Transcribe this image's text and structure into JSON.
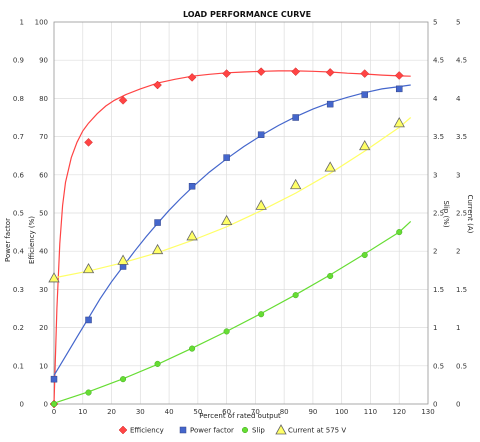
{
  "chart_data": {
    "type": "line",
    "title": "LOAD PERFORMANCE CURVE",
    "xlabel": "Percent of rated output",
    "ylabel_left_outer": "Power factor",
    "ylabel_left_inner": "Efficiency (%)",
    "ylabel_right_inner": "Slip (%)",
    "ylabel_right_outer": "Current (A)",
    "xlim": [
      0,
      130
    ],
    "x_ticks": [
      "0",
      "10",
      "20",
      "30",
      "40",
      "50",
      "60",
      "70",
      "80",
      "90",
      "100",
      "110",
      "120",
      "130"
    ],
    "y_left_outer_ticks": [
      "0",
      "0.1",
      "0.2",
      "0.3",
      "0.4",
      "0.5",
      "0.6",
      "0.7",
      "0.8",
      "0.9",
      "1"
    ],
    "y_left_inner_ticks": [
      "0",
      "10",
      "20",
      "30",
      "40",
      "50",
      "60",
      "70",
      "80",
      "90",
      "100"
    ],
    "y_right_inner_ticks": [
      "0",
      "0.5",
      "1",
      "1.5",
      "2",
      "2.5",
      "3",
      "3.5",
      "4",
      "4.5",
      "5"
    ],
    "y_right_outer_ticks": [
      "0",
      "0.5",
      "1",
      "1.5",
      "2",
      "2.5",
      "3",
      "3.5",
      "4",
      "4.5",
      "5"
    ],
    "grid": true,
    "legend_position": "bottom",
    "series": [
      {
        "name": "Efficiency",
        "color": "#ff4444",
        "marker": "diamond",
        "x": [
          0,
          12,
          24,
          36,
          48,
          60,
          72,
          84,
          96,
          108,
          120
        ],
        "y": [
          0,
          68.5,
          79.5,
          83.5,
          85.5,
          86.5,
          87,
          87,
          86.8,
          86.5,
          86
        ],
        "curve": [
          [
            0,
            0
          ],
          [
            1,
            25
          ],
          [
            2,
            42
          ],
          [
            3,
            52
          ],
          [
            4,
            58
          ],
          [
            6,
            64.5
          ],
          [
            8,
            68.5
          ],
          [
            10,
            71.5
          ],
          [
            12,
            73.5
          ],
          [
            15,
            76
          ],
          [
            18,
            78
          ],
          [
            21,
            79.5
          ],
          [
            25,
            81
          ],
          [
            30,
            82.5
          ],
          [
            36,
            84
          ],
          [
            42,
            85
          ],
          [
            48,
            85.8
          ],
          [
            54,
            86.3
          ],
          [
            60,
            86.7
          ],
          [
            66,
            86.9
          ],
          [
            72,
            87.1
          ],
          [
            78,
            87.2
          ],
          [
            84,
            87.2
          ],
          [
            90,
            87.1
          ],
          [
            96,
            86.9
          ],
          [
            102,
            86.6
          ],
          [
            108,
            86.4
          ],
          [
            114,
            86.1
          ],
          [
            120,
            85.9
          ],
          [
            124,
            85.8
          ]
        ]
      },
      {
        "name": "Power factor",
        "color": "#4466cc",
        "marker": "square",
        "x": [
          0,
          12,
          24,
          36,
          48,
          60,
          72,
          84,
          96,
          108,
          120
        ],
        "y": [
          6.5,
          22,
          36,
          47.5,
          57,
          64.5,
          70.5,
          75,
          78.5,
          81,
          82.5
        ],
        "curve": [
          [
            0,
            7.5
          ],
          [
            4,
            12.5
          ],
          [
            8,
            17.5
          ],
          [
            12,
            22.5
          ],
          [
            16,
            27.5
          ],
          [
            20,
            32
          ],
          [
            24,
            36
          ],
          [
            28,
            40
          ],
          [
            32,
            43.8
          ],
          [
            36,
            47.3
          ],
          [
            40,
            50.7
          ],
          [
            44,
            53.8
          ],
          [
            48,
            56.7
          ],
          [
            54,
            60.7
          ],
          [
            60,
            64.2
          ],
          [
            66,
            67.4
          ],
          [
            72,
            70.3
          ],
          [
            78,
            72.9
          ],
          [
            84,
            75.2
          ],
          [
            90,
            77.2
          ],
          [
            96,
            78.9
          ],
          [
            102,
            80.3
          ],
          [
            108,
            81.5
          ],
          [
            114,
            82.5
          ],
          [
            120,
            83.1
          ],
          [
            124,
            83.5
          ]
        ]
      },
      {
        "name": "Slip",
        "color": "#66dd33",
        "marker": "circle",
        "x": [
          0,
          12,
          24,
          36,
          48,
          60,
          72,
          84,
          96,
          108,
          120
        ],
        "y": [
          0,
          3,
          6.5,
          10.5,
          14.5,
          19,
          23.5,
          28.5,
          33.5,
          39,
          45
        ],
        "curve": [
          [
            0,
            0.2
          ],
          [
            12,
            3.2
          ],
          [
            24,
            6.6
          ],
          [
            36,
            10.4
          ],
          [
            48,
            14.6
          ],
          [
            60,
            19
          ],
          [
            72,
            23.7
          ],
          [
            84,
            28.6
          ],
          [
            96,
            33.8
          ],
          [
            108,
            39.3
          ],
          [
            120,
            45
          ],
          [
            124,
            47.8
          ]
        ]
      },
      {
        "name": "Current at 575 V",
        "color": "#ffff66",
        "marker": "triangle",
        "x": [
          0,
          12,
          24,
          36,
          48,
          60,
          72,
          84,
          96,
          108,
          120
        ],
        "y": [
          1.65,
          1.77,
          1.88,
          2.02,
          2.2,
          2.4,
          2.6,
          2.87,
          3.1,
          3.38,
          3.68
        ],
        "curve": [
          [
            0,
            1.65
          ],
          [
            12,
            1.74
          ],
          [
            24,
            1.85
          ],
          [
            36,
            1.98
          ],
          [
            48,
            2.14
          ],
          [
            60,
            2.32
          ],
          [
            72,
            2.53
          ],
          [
            84,
            2.76
          ],
          [
            96,
            3.02
          ],
          [
            108,
            3.31
          ],
          [
            120,
            3.62
          ],
          [
            124,
            3.75
          ]
        ]
      }
    ]
  }
}
